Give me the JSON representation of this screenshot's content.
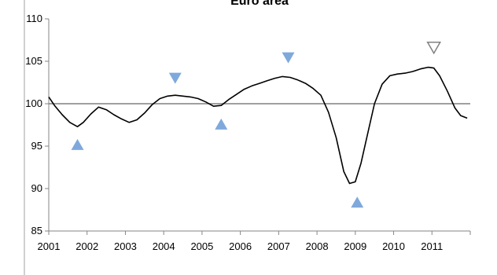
{
  "chart_data": {
    "type": "line",
    "title": "Euro area",
    "xlabel": "",
    "ylabel": "",
    "xlim": [
      2001,
      2012
    ],
    "ylim": [
      85,
      110
    ],
    "y_ticks": [
      85,
      90,
      95,
      100,
      105,
      110
    ],
    "x_tick_labels": [
      "2001",
      "2002",
      "2003",
      "2004",
      "2005",
      "2006",
      "2007",
      "2008",
      "2009",
      "2010",
      "2011"
    ],
    "reference_line": 100,
    "grid": false,
    "legend": "none",
    "series": [
      {
        "color": "#000000",
        "x": [
          2001.0,
          2001.15,
          2001.35,
          2001.55,
          2001.75,
          2001.9,
          2002.1,
          2002.3,
          2002.5,
          2002.7,
          2002.9,
          2003.1,
          2003.3,
          2003.5,
          2003.7,
          2003.9,
          2004.1,
          2004.3,
          2004.5,
          2004.7,
          2004.9,
          2005.1,
          2005.3,
          2005.5,
          2005.7,
          2005.9,
          2006.1,
          2006.3,
          2006.5,
          2006.7,
          2006.9,
          2007.1,
          2007.3,
          2007.5,
          2007.7,
          2007.9,
          2008.1,
          2008.3,
          2008.5,
          2008.7,
          2008.85,
          2009.0,
          2009.15,
          2009.3,
          2009.5,
          2009.7,
          2009.9,
          2010.1,
          2010.3,
          2010.5,
          2010.7,
          2010.9,
          2011.05,
          2011.2,
          2011.4,
          2011.6,
          2011.75,
          2011.92
        ],
        "values": [
          100.8,
          99.8,
          98.7,
          97.8,
          97.3,
          97.8,
          98.8,
          99.6,
          99.3,
          98.7,
          98.2,
          97.8,
          98.1,
          98.9,
          99.9,
          100.6,
          100.9,
          101.0,
          100.9,
          100.8,
          100.6,
          100.2,
          99.7,
          99.8,
          100.5,
          101.1,
          101.7,
          102.1,
          102.4,
          102.7,
          103.0,
          103.2,
          103.1,
          102.8,
          102.4,
          101.8,
          101.0,
          99.0,
          96.0,
          92.0,
          90.6,
          90.8,
          93.0,
          96.0,
          100.0,
          102.3,
          103.3,
          103.5,
          103.6,
          103.8,
          104.1,
          104.3,
          104.2,
          103.3,
          101.5,
          99.5,
          98.6,
          98.3
        ]
      }
    ],
    "markers": [
      {
        "kind": "trough",
        "shape": "up-triangle",
        "x": 2001.75,
        "y": 95.2,
        "color": "#7fa9db"
      },
      {
        "kind": "peak",
        "shape": "down-triangle",
        "x": 2004.3,
        "y": 103.0,
        "color": "#7fa9db"
      },
      {
        "kind": "trough",
        "shape": "up-triangle",
        "x": 2005.5,
        "y": 97.6,
        "color": "#7fa9db"
      },
      {
        "kind": "peak",
        "shape": "down-triangle",
        "x": 2007.25,
        "y": 105.4,
        "color": "#7fa9db"
      },
      {
        "kind": "trough",
        "shape": "up-triangle",
        "x": 2009.05,
        "y": 88.4,
        "color": "#7fa9db"
      },
      {
        "kind": "peak",
        "shape": "down-triangle-outline",
        "x": 2011.05,
        "y": 106.6,
        "color": "#808080"
      }
    ]
  }
}
